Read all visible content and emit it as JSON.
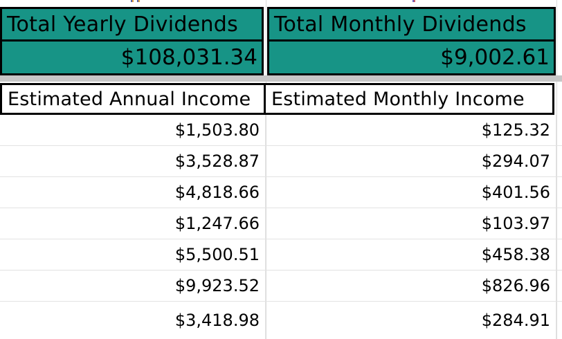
{
  "colors": {
    "teal_fill": "#179486",
    "cell_border": "#000000",
    "gridline": "#e2e2e2",
    "frozen_divider_gray": "#c7c7c7",
    "artifact_left_1": [
      "#5661ad",
      "#e0a23e"
    ],
    "artifact_left_2": [
      "#5661ad",
      "#e0a23e"
    ],
    "artifact_right": [
      "#6b5fc0",
      "#c75f6a"
    ]
  },
  "summary": {
    "yearly": {
      "label": "Total Yearly Dividends",
      "value": "$108,031.34"
    },
    "monthly": {
      "label": "Total Monthly Dividends",
      "value": "$9,002.61"
    }
  },
  "income_table": {
    "columns": [
      "Estimated Annual Income",
      "Estimated Monthly Income"
    ],
    "rows": [
      [
        "$1,503.80",
        "$125.32"
      ],
      [
        "$3,528.87",
        "$294.07"
      ],
      [
        "$4,818.66",
        "$401.56"
      ],
      [
        "$1,247.66",
        "$103.97"
      ],
      [
        "$5,500.51",
        "$458.38"
      ],
      [
        "$9,923.52",
        "$826.96"
      ],
      [
        "$3,418.98",
        "$284.91"
      ]
    ]
  }
}
